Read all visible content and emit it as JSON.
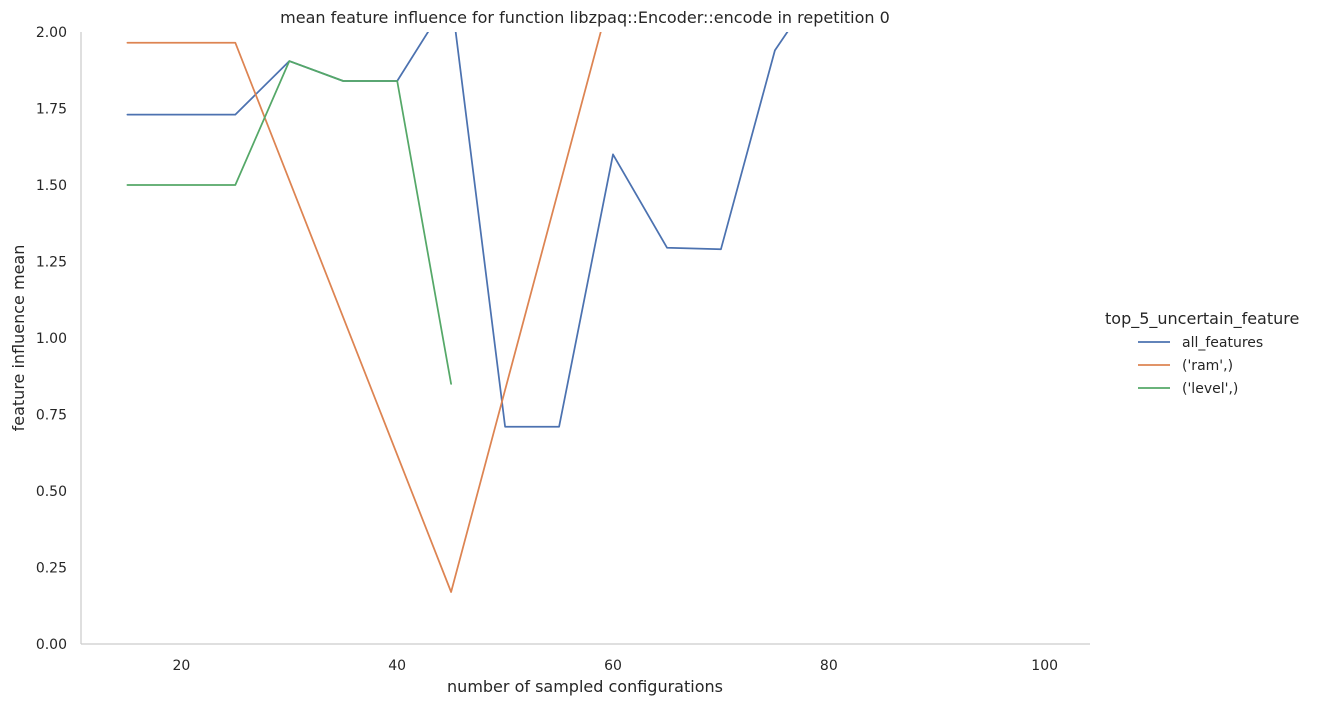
{
  "chart_data": {
    "type": "line",
    "title": "mean feature influence for function libzpaq::Encoder::encode in repetition 0",
    "xlabel": "number of sampled configurations",
    "ylabel": "feature influence mean",
    "xlim": [
      10.7,
      104.2
    ],
    "ylim": [
      0,
      2
    ],
    "x_ticks": [
      20,
      40,
      60,
      80,
      100
    ],
    "y_ticks": [
      "0.00",
      "0.25",
      "0.50",
      "0.75",
      "1.00",
      "1.25",
      "1.50",
      "1.75",
      "2.00"
    ],
    "grid": false,
    "legend_title": "top_5_uncertain_feature",
    "legend_position": "right",
    "series": [
      {
        "name": "all_features",
        "color": "#4c72b0",
        "x": [
          15,
          25,
          30,
          35,
          40,
          45,
          50,
          55,
          60,
          65,
          70,
          75,
          80
        ],
        "y": [
          1.73,
          1.73,
          1.905,
          1.84,
          1.84,
          2.12,
          0.71,
          0.71,
          1.6,
          1.295,
          1.29,
          1.94,
          2.2
        ]
      },
      {
        "name": "('ram',)",
        "color": "#dd8452",
        "x": [
          15,
          25,
          45,
          60
        ],
        "y": [
          1.965,
          1.965,
          0.17,
          2.15
        ]
      },
      {
        "name": "('level',)",
        "color": "#55a868",
        "x": [
          15,
          25,
          30,
          35,
          40,
          45
        ],
        "y": [
          1.5,
          1.5,
          1.905,
          1.84,
          1.84,
          0.85
        ]
      }
    ]
  }
}
